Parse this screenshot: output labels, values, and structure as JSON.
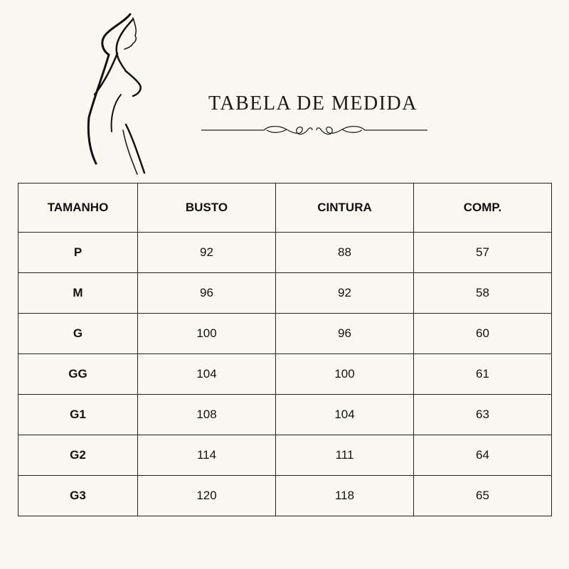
{
  "title": "TABELA DE MEDIDA",
  "icons": {
    "silhouette": "woman-silhouette-illustration",
    "ornament": "flourish-divider"
  },
  "table": {
    "headers": [
      "TAMANHO",
      "BUSTO",
      "CINTURA",
      "COMP."
    ],
    "rows": [
      [
        "P",
        "92",
        "88",
        "57"
      ],
      [
        "M",
        "96",
        "92",
        "58"
      ],
      [
        "G",
        "100",
        "96",
        "60"
      ],
      [
        "GG",
        "104",
        "100",
        "61"
      ],
      [
        "G1",
        "108",
        "104",
        "63"
      ],
      [
        "G2",
        "114",
        "111",
        "64"
      ],
      [
        "G3",
        "120",
        "118",
        "65"
      ]
    ]
  }
}
